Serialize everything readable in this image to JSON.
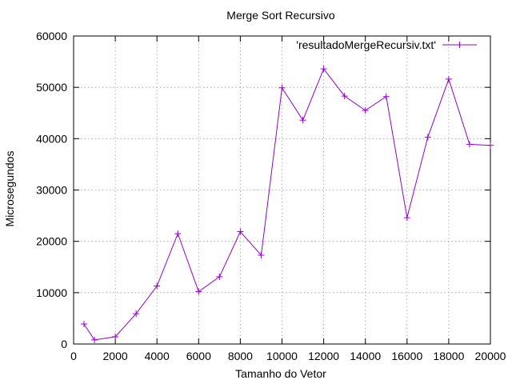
{
  "chart_data": {
    "type": "line",
    "title": "Merge Sort Recursivo",
    "xlabel": "Tamanho do Vetor",
    "ylabel": "Microsegundos",
    "xlim": [
      0,
      20000
    ],
    "ylim": [
      0,
      60000
    ],
    "x_ticks": [
      "0",
      "2000",
      "4000",
      "6000",
      "8000",
      "10000",
      "12000",
      "14000",
      "16000",
      "18000",
      "20000"
    ],
    "y_ticks": [
      "0",
      "10000",
      "20000",
      "30000",
      "40000",
      "50000",
      "60000"
    ],
    "grid": true,
    "legend_position": "top-right",
    "series": [
      {
        "name": "'resultadoMergeRecursiv.txt'",
        "color": "#9400d3",
        "marker": "plus",
        "x": [
          500,
          1000,
          2000,
          3000,
          4000,
          5000,
          6000,
          7000,
          8000,
          9000,
          10000,
          11000,
          12000,
          13000,
          14000,
          15000,
          16000,
          17000,
          18000,
          19000,
          20000
        ],
        "y": [
          3900,
          800,
          1400,
          5900,
          11300,
          21500,
          10200,
          13100,
          21900,
          17300,
          49900,
          43600,
          53600,
          48300,
          45500,
          48200,
          24600,
          40300,
          51600,
          38900,
          38700
        ]
      }
    ]
  }
}
